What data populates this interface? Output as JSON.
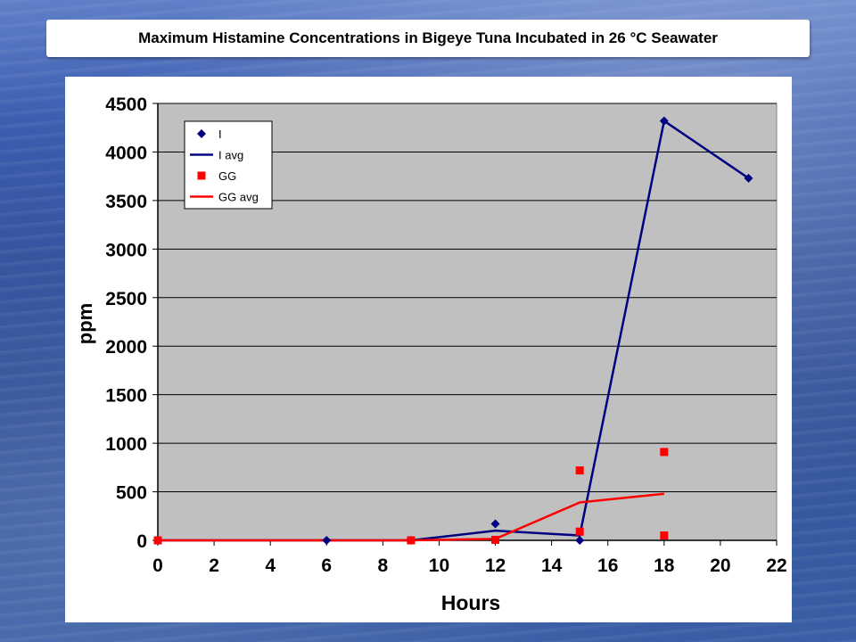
{
  "slide": {
    "title": "Maximum Histamine Concentrations in Bigeye Tuna Incubated in 26 °C Seawater"
  },
  "chart_data": {
    "type": "scatter",
    "title": "",
    "xlabel": "Hours",
    "ylabel": "ppm",
    "xlim": [
      0,
      22
    ],
    "ylim": [
      0,
      4500
    ],
    "xticks": [
      0,
      2,
      4,
      6,
      8,
      10,
      12,
      14,
      16,
      18,
      20,
      22
    ],
    "yticks": [
      0,
      500,
      1000,
      1500,
      2000,
      2500,
      3000,
      3500,
      4000,
      4500
    ],
    "grid": "horizontal",
    "legend_position": "top-left",
    "plot_background": "#c0c0c0",
    "series": [
      {
        "name": "I",
        "kind": "points",
        "marker": "diamond",
        "color": "#000080",
        "points": [
          [
            0,
            0
          ],
          [
            6,
            0
          ],
          [
            9,
            0
          ],
          [
            12,
            170
          ],
          [
            15,
            0
          ],
          [
            18,
            4320
          ],
          [
            21,
            3730
          ]
        ]
      },
      {
        "name": "I avg",
        "kind": "line",
        "color": "#000080",
        "points": [
          [
            0,
            0
          ],
          [
            6,
            0
          ],
          [
            9,
            0
          ],
          [
            12,
            100
          ],
          [
            15,
            50
          ],
          [
            18,
            4320
          ],
          [
            21,
            3730
          ]
        ]
      },
      {
        "name": "GG",
        "kind": "points",
        "marker": "square",
        "color": "#ff0000",
        "points": [
          [
            0,
            0
          ],
          [
            9,
            0
          ],
          [
            12,
            5
          ],
          [
            15,
            720
          ],
          [
            15,
            90
          ],
          [
            18,
            910
          ],
          [
            18,
            50
          ]
        ]
      },
      {
        "name": "GG avg",
        "kind": "line",
        "color": "#ff0000",
        "points": [
          [
            0,
            0
          ],
          [
            9,
            0
          ],
          [
            12,
            15
          ],
          [
            15,
            390
          ],
          [
            18,
            480
          ]
        ]
      }
    ]
  }
}
